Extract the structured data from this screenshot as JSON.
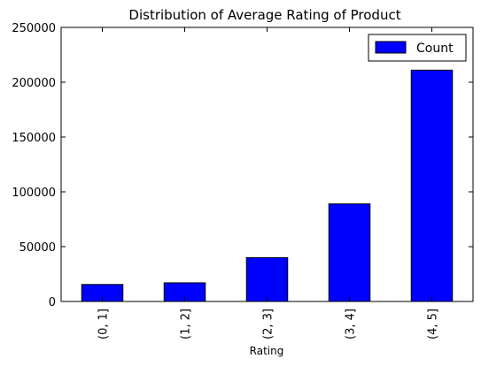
{
  "chart_data": {
    "type": "bar",
    "title": "Distribution of Average Rating of Product",
    "xlabel": "Rating",
    "ylabel": "",
    "categories": [
      "(0, 1]",
      "(1, 2]",
      "(2, 3]",
      "(3, 4]",
      "(4, 5]"
    ],
    "series": [
      {
        "name": "Count",
        "values": [
          15500,
          17000,
          40000,
          89000,
          211000
        ]
      }
    ],
    "ylim": [
      0,
      250000
    ],
    "yticks": [
      0,
      50000,
      100000,
      150000,
      200000,
      250000
    ],
    "grid": false,
    "legend": "top-right",
    "bar_color": "#0000ff",
    "edge_color": "#000000"
  }
}
